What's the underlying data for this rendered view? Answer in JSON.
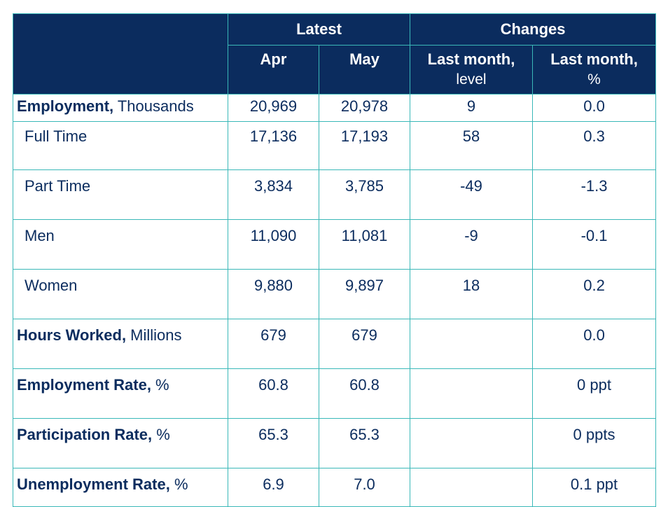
{
  "header": {
    "group_latest": "Latest",
    "group_changes": "Changes",
    "col_apr": "Apr",
    "col_may": "May",
    "col_lm_level_main": "Last month,",
    "col_lm_level_sub": "level",
    "col_lm_pct_main": "Last month,",
    "col_lm_pct_sub": "%"
  },
  "rows": [
    {
      "label_bold": "Employment,",
      "label_rest": " Thousands",
      "apr": "20,969",
      "may": "20,978",
      "lm_level": "9",
      "lm_pct": "0.0"
    },
    {
      "label_bold": "",
      "label_rest": "Full Time",
      "apr": "17,136",
      "may": "17,193",
      "lm_level": "58",
      "lm_pct": "0.3"
    },
    {
      "label_bold": "",
      "label_rest": "Part Time",
      "apr": "3,834",
      "may": "3,785",
      "lm_level": "-49",
      "lm_pct": "-1.3"
    },
    {
      "label_bold": "",
      "label_rest": "Men",
      "apr": "11,090",
      "may": "11,081",
      "lm_level": "-9",
      "lm_pct": "-0.1"
    },
    {
      "label_bold": "",
      "label_rest": "Women",
      "apr": "9,880",
      "may": "9,897",
      "lm_level": "18",
      "lm_pct": "0.2"
    },
    {
      "label_bold": "Hours Worked,",
      "label_rest": " Millions",
      "apr": "679",
      "may": "679",
      "lm_level": "",
      "lm_pct": "0.0"
    },
    {
      "label_bold": "Employment Rate,",
      "label_rest": " %",
      "apr": "60.8",
      "may": "60.8",
      "lm_level": "",
      "lm_pct": "0 ppt"
    },
    {
      "label_bold": "Participation Rate,",
      "label_rest": " %",
      "apr": "65.3",
      "may": "65.3",
      "lm_level": "",
      "lm_pct": "0 ppts"
    },
    {
      "label_bold": "Unemployment Rate,",
      "label_rest": " %",
      "apr": "6.9",
      "may": "7.0",
      "lm_level": "",
      "lm_pct": "0.1 ppt"
    }
  ]
}
